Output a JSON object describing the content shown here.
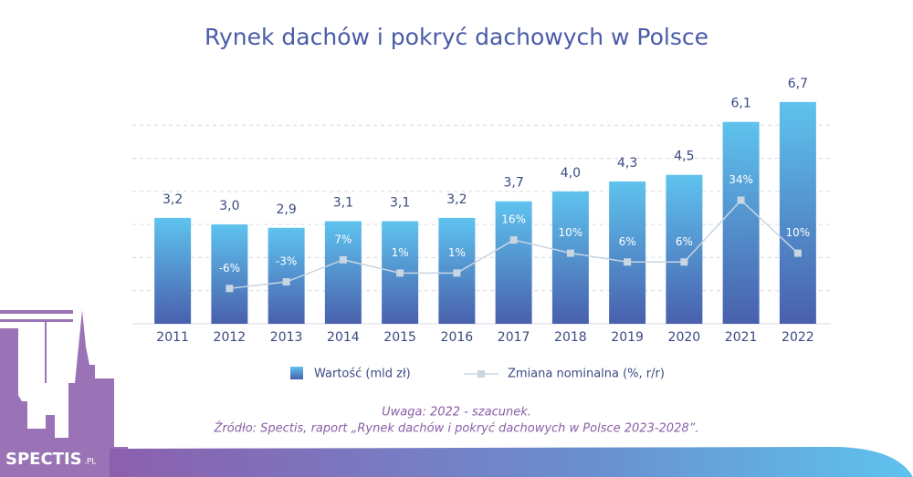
{
  "chart_data": {
    "type": "bar_line",
    "title": "Rynek dachów i pokryć dachowych w Polsce",
    "categories": [
      "2011",
      "2012",
      "2013",
      "2014",
      "2015",
      "2016",
      "2017",
      "2018",
      "2019",
      "2020",
      "2021",
      "2022"
    ],
    "series": [
      {
        "name": "Wartość (mld zł)",
        "type": "bar",
        "colors": [
          "#5ec3ee",
          "#4960ad"
        ],
        "values": [
          3.2,
          3.0,
          2.9,
          3.1,
          3.1,
          3.2,
          3.7,
          4.0,
          4.3,
          4.5,
          6.1,
          6.7
        ],
        "value_labels": [
          "3,2",
          "3,0",
          "2,9",
          "3,1",
          "3,1",
          "3,2",
          "3,7",
          "4,0",
          "4,3",
          "4,5",
          "6,1",
          "6,7"
        ]
      },
      {
        "name": "Zmiana nominalna (%, r/r)",
        "type": "line",
        "axis": "y2",
        "color": "#c8d5e2",
        "values": [
          null,
          -6,
          -3,
          7,
          1,
          1,
          16,
          10,
          6,
          6,
          34,
          10
        ],
        "value_labels": [
          null,
          "-6%",
          "-3%",
          "7%",
          "1%",
          "1%",
          "16%",
          "10%",
          "6%",
          "6%",
          "34%",
          "10%"
        ]
      }
    ],
    "ylim": [
      0,
      7
    ],
    "yticks": [
      1,
      2,
      3,
      4,
      5,
      6
    ],
    "grid": true,
    "y2lim": [
      -22,
      83
    ],
    "note": "Uwaga: 2022 - szacunek.",
    "source": "Źródło: Spectis, raport „Rynek dachów i pokryć dachowych w Polsce 2023-2028”.",
    "logo": "SPECTIS",
    "logo_suffix": ".PL"
  }
}
